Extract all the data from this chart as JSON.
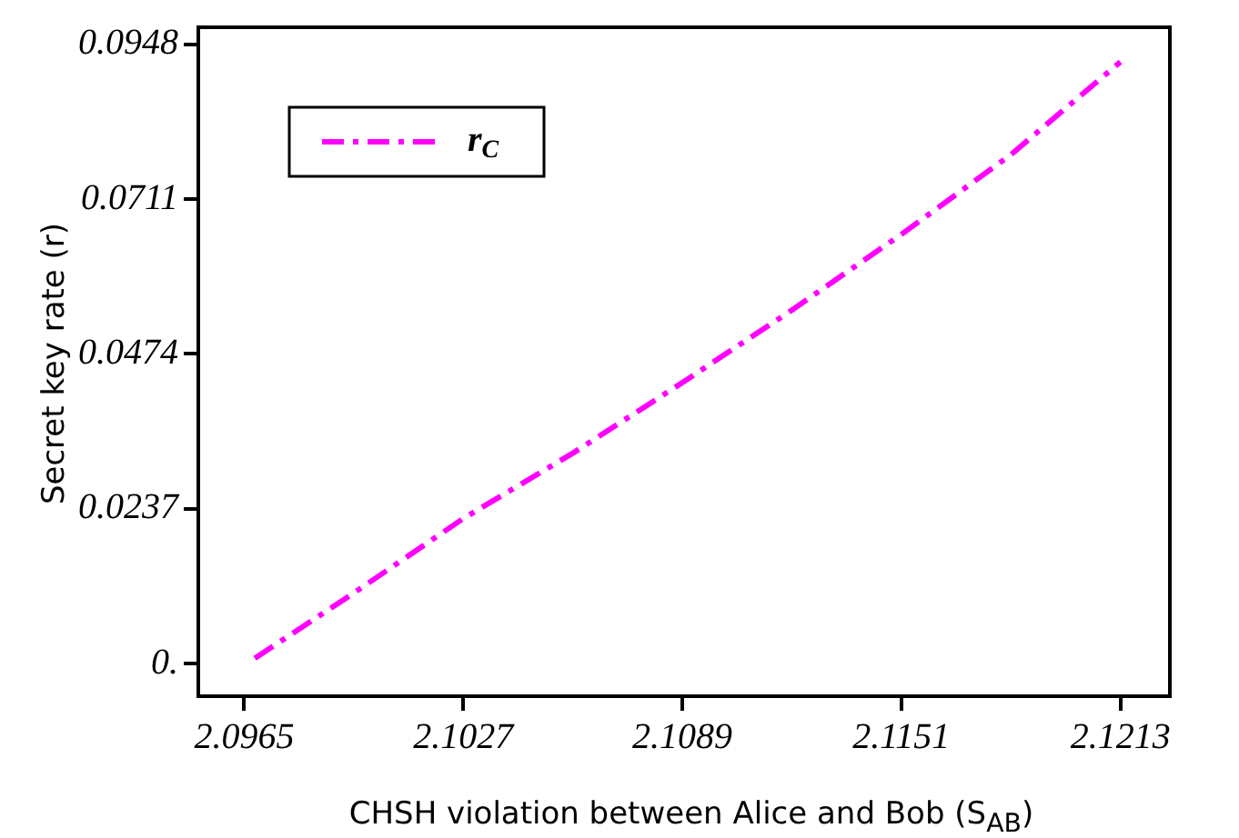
{
  "chart_data": {
    "type": "line",
    "xlabel": "CHSH violation between Alice and Bob (S$_{AB}$)",
    "ylabel": "Secret key rate (r)",
    "series": [
      {
        "name": "r$_{C}$",
        "color": "#ff00ff",
        "x": [
          2.0968,
          2.0996,
          2.1027,
          2.1058,
          2.1089,
          2.112,
          2.1151,
          2.1182,
          2.1213
        ],
        "values": [
          0.0008,
          0.0108,
          0.0222,
          0.0322,
          0.043,
          0.0541,
          0.0657,
          0.0779,
          0.0921
        ]
      }
    ],
    "xlim": [
      2.0952,
      2.1227
    ],
    "xticks": [
      2.0965,
      2.1027,
      2.1089,
      2.1151,
      2.1213
    ],
    "ylim": [
      -0.005,
      0.0974
    ],
    "yticks": [
      {
        "value": 0,
        "label": "0."
      },
      0.0237,
      0.0474,
      0.0711,
      0.0948
    ],
    "grid": false,
    "legend": "top left",
    "marker": "none",
    "line_style": "dashed"
  }
}
